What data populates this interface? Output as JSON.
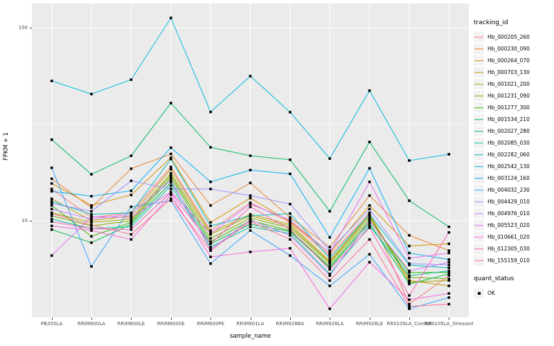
{
  "figure": {
    "background": "#FFFFFF",
    "panel_background": "#EBEBEB",
    "gridline_color": "#FFFFFF",
    "tick_color": "#333333",
    "tick_label_color": "#4D4D4D",
    "point_color": "#000000"
  },
  "chart_data": {
    "type": "line",
    "title": "",
    "xlabel": "sample_name",
    "ylabel": "FPKM + 1",
    "y_scale": "log10",
    "ylim": [
      3.1,
      133
    ],
    "grid": "on",
    "legend_position": "right",
    "y_ticks": [
      {
        "value": 10,
        "label": "10"
      },
      {
        "value": 100,
        "label": "100"
      }
    ],
    "y_minor_ticks": [
      3.162,
      31.62
    ],
    "x": [
      "PB350LA",
      "RRIM600LA",
      "RRIM600LE",
      "RRIM600SE",
      "RRIM600PE",
      "RRIM901LA",
      "RRIM928BA",
      "RRIM928LA",
      "RRIM928LE",
      "RRII105LA_Control",
      "RRII105LA_Stressed"
    ],
    "legend_title": "tracking_id",
    "series": [
      {
        "name": "Hb_000205_260",
        "color": "#F8766D",
        "values": [
          14.6,
          10.4,
          11.0,
          19.0,
          8.9,
          12.4,
          9.8,
          6.6,
          11.0,
          3.7,
          5.2
        ]
      },
      {
        "name": "Hb_000230_090",
        "color": "#EA8331",
        "values": [
          16.5,
          11.7,
          18.6,
          22.2,
          12.0,
          15.7,
          10.4,
          7.3,
          13.5,
          8.4,
          7.0
        ]
      },
      {
        "name": "Hb_000264_070",
        "color": "#D89000",
        "values": [
          15.6,
          12.0,
          13.6,
          21.2,
          9.8,
          13.1,
          9.9,
          6.8,
          12.0,
          7.4,
          7.6
        ]
      },
      {
        "name": "Hb_000703_130",
        "color": "#C09B00",
        "values": [
          13.0,
          10.0,
          10.6,
          18.5,
          8.7,
          10.8,
          9.6,
          6.2,
          10.8,
          4.9,
          4.6
        ]
      },
      {
        "name": "Hb_001021_200",
        "color": "#A3A500",
        "values": [
          11.0,
          9.8,
          10.2,
          17.6,
          8.5,
          10.6,
          9.4,
          6.1,
          10.6,
          4.8,
          4.9
        ]
      },
      {
        "name": "Hb_001231_090",
        "color": "#7CAE00",
        "values": [
          10.6,
          9.4,
          10.0,
          17.2,
          8.1,
          10.3,
          9.2,
          6.0,
          10.3,
          5.1,
          5.0
        ]
      },
      {
        "name": "Hb_001277_300",
        "color": "#39B600",
        "values": [
          12.0,
          8.3,
          9.8,
          16.7,
          7.8,
          10.0,
          8.9,
          5.8,
          10.0,
          5.4,
          5.4
        ]
      },
      {
        "name": "Hb_001534_210",
        "color": "#00BB4E",
        "values": [
          9.0,
          7.7,
          9.6,
          15.8,
          7.6,
          9.6,
          8.8,
          5.7,
          9.7,
          4.7,
          5.3
        ]
      },
      {
        "name": "Hb_002027_280",
        "color": "#00BD61",
        "values": [
          26.3,
          17.4,
          21.7,
          40.7,
          24.0,
          21.7,
          20.7,
          11.2,
          25.6,
          12.7,
          9.3
        ]
      },
      {
        "name": "Hb_002085_030",
        "color": "#00C1A3",
        "values": [
          10.2,
          9.1,
          9.3,
          15.2,
          7.3,
          9.3,
          8.6,
          5.3,
          9.4,
          5.2,
          5.5
        ]
      },
      {
        "name": "Hb_002282_060",
        "color": "#00BFC4",
        "values": [
          12.6,
          10.8,
          11.0,
          20.9,
          9.4,
          10.6,
          10.9,
          6.4,
          10.8,
          5.9,
          5.7
        ]
      },
      {
        "name": "Hb_002542_130",
        "color": "#00BADE",
        "values": [
          53.0,
          45.3,
          53.8,
          112.3,
          36.6,
          56.1,
          36.5,
          21.0,
          47.2,
          20.5,
          22.1
        ]
      },
      {
        "name": "Hb_003124_160",
        "color": "#00B0F6",
        "values": [
          14.2,
          13.4,
          14.3,
          23.9,
          15.9,
          18.3,
          17.5,
          8.2,
          18.7,
          6.8,
          6.3
        ]
      },
      {
        "name": "Hb_004032_230",
        "color": "#35A2FF",
        "values": [
          18.8,
          5.8,
          11.8,
          12.7,
          6.0,
          8.9,
          6.6,
          4.6,
          6.7,
          3.5,
          4.0
        ]
      },
      {
        "name": "Hb_004429_010",
        "color": "#9C8DFF",
        "values": [
          12.3,
          11.2,
          16.1,
          14.6,
          14.6,
          13.5,
          12.2,
          7.0,
          11.5,
          6.0,
          5.9
        ]
      },
      {
        "name": "Hb_004976_010",
        "color": "#C77CFF",
        "values": [
          11.5,
          10.2,
          10.8,
          16.2,
          7.1,
          10.1,
          8.4,
          5.2,
          10.0,
          5.5,
          6.1
        ]
      },
      {
        "name": "Hb_005523_020",
        "color": "#E26EF7",
        "values": [
          6.6,
          10.5,
          10.4,
          14.1,
          8.6,
          12.2,
          10.1,
          6.8,
          15.9,
          6.4,
          6.8
        ]
      },
      {
        "name": "Hb_010661_020",
        "color": "#F863DF",
        "values": [
          9.4,
          8.9,
          8.0,
          13.6,
          6.5,
          6.9,
          7.2,
          3.5,
          6.1,
          3.9,
          4.2
        ]
      },
      {
        "name": "Hb_012305_030",
        "color": "#FF62BC",
        "values": [
          9.9,
          9.1,
          9.0,
          14.0,
          7.6,
          11.8,
          9.0,
          5.6,
          9.2,
          4.1,
          8.7
        ]
      },
      {
        "name": "Hb_155159_010",
        "color": "#FF6C92",
        "values": [
          10.9,
          9.5,
          8.5,
          13.0,
          7.0,
          9.9,
          8.0,
          4.9,
          8.0,
          3.6,
          3.7
        ]
      }
    ],
    "quant_legend": {
      "title": "quant_status",
      "items": [
        {
          "label": "OK"
        }
      ]
    }
  }
}
